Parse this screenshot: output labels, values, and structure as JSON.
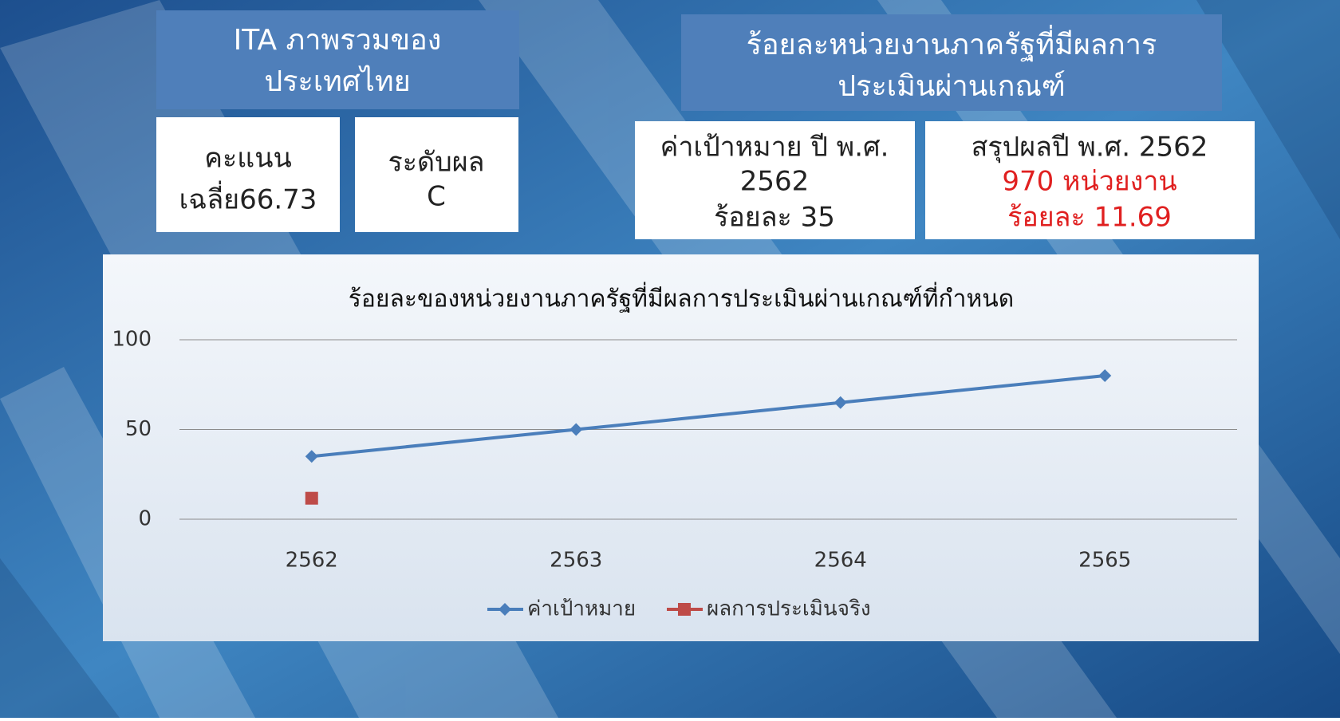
{
  "panels": {
    "ita_title": [
      "ITA ภาพรวมของ",
      "ประเทศไทย"
    ],
    "score": [
      "คะแนน",
      "เฉลี่ย66.73"
    ],
    "grade": [
      "ระดับผล",
      "C"
    ],
    "pass_title": [
      "ร้อยละหน่วยงานภาครัฐที่มีผลการ",
      "ประเมินผ่านเกณฑ์"
    ],
    "target": [
      "ค่าเป้าหมาย ปี พ.ศ.",
      "2562",
      "ร้อยละ 35"
    ],
    "result": [
      "สรุปผลปี พ.ศ. 2562",
      "970 หน่วยงาน",
      "ร้อยละ 11.69"
    ]
  },
  "chart_data": {
    "type": "line",
    "title": "ร้อยละของหน่วยงานภาครัฐที่มีผลการประเมินผ่านเกณฑ์ที่กำหนด",
    "categories": [
      "2562",
      "2563",
      "2564",
      "2565"
    ],
    "series": [
      {
        "name": "ค่าเป้าหมาย",
        "color": "#4a7ebb",
        "values": [
          35,
          50,
          65,
          80
        ]
      },
      {
        "name": "ผลการประเมินจริง",
        "color": "#be4b48",
        "values": [
          11.69,
          null,
          null,
          null
        ]
      }
    ],
    "ylim": [
      0,
      100
    ],
    "yticks": [
      0,
      50,
      100
    ],
    "grid": true,
    "legend": "bottom"
  }
}
